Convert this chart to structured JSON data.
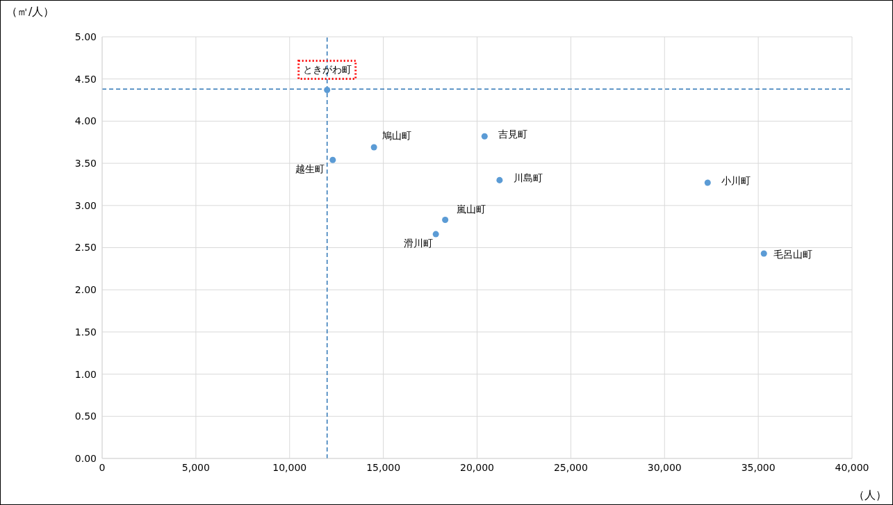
{
  "chart_data": {
    "type": "scatter",
    "xlabel": "（人）",
    "ylabel": "（㎡/人）",
    "x": [
      12000,
      12300,
      14500,
      20400,
      21200,
      18300,
      17800,
      32300,
      35300
    ],
    "series": [
      {
        "color": "#5b9bd5",
        "values": [
          4.37,
          3.54,
          3.69,
          3.82,
          3.3,
          2.83,
          2.66,
          3.27,
          2.43
        ],
        "value_labels": [
          "ときがわ町",
          "越生町",
          "鳩山町",
          "吉見町",
          "川島町",
          "嵐山町",
          "滑川町",
          "小川町",
          "毛呂山町"
        ]
      }
    ],
    "xlim": [
      0,
      40000
    ],
    "xticks": [
      0,
      {
        "value": 5000,
        "label": "5,000"
      },
      {
        "value": 10000,
        "label": "10,000"
      },
      {
        "value": 15000,
        "label": "15,000"
      },
      {
        "value": 20000,
        "label": "20,000"
      },
      {
        "value": 25000,
        "label": "25,000"
      },
      {
        "value": 30000,
        "label": "30,000"
      },
      {
        "value": 35000,
        "label": "35,000"
      },
      {
        "value": 40000,
        "label": "40,000"
      }
    ],
    "ylim": [
      0,
      5
    ],
    "yticks": [
      {
        "value": 0,
        "label": "0.00"
      },
      {
        "value": 0.5,
        "label": "0.50"
      },
      {
        "value": 1,
        "label": "1.00"
      },
      {
        "value": 1.5,
        "label": "1.50"
      },
      {
        "value": 2,
        "label": "2.00"
      },
      {
        "value": 2.5,
        "label": "2.50"
      },
      {
        "value": 3,
        "label": "3.00"
      },
      {
        "value": 3.5,
        "label": "3.50"
      },
      {
        "value": 4,
        "label": "4.00"
      },
      {
        "value": 4.5,
        "label": "4.50"
      },
      {
        "value": 5,
        "label": "5.00"
      }
    ],
    "ref_lines": [
      {
        "axis": "x",
        "value": 12000,
        "color": "#2e75b6",
        "line_style": "dashed"
      },
      {
        "axis": "y",
        "value": 4.38,
        "color": "#2e75b6",
        "line_style": "dashed"
      }
    ],
    "grid": true,
    "marker": "circle"
  }
}
